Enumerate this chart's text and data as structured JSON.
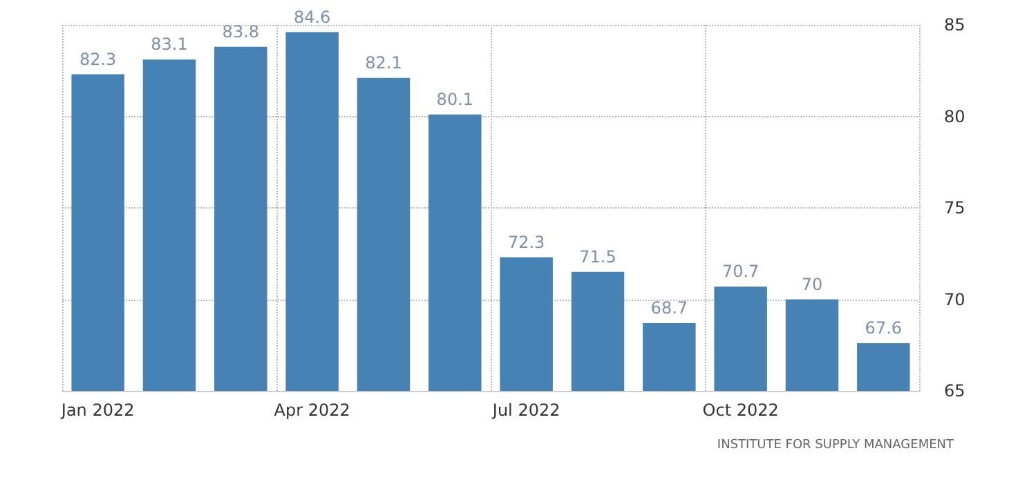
{
  "chart_data": {
    "type": "bar",
    "categories": [
      "Jan 2022",
      null,
      null,
      "Apr 2022",
      null,
      null,
      "Jul 2022",
      null,
      null,
      "Oct 2022",
      null,
      null
    ],
    "values": [
      82.3,
      83.1,
      83.8,
      84.6,
      82.1,
      80.1,
      72.3,
      71.5,
      68.7,
      70.7,
      70,
      67.6
    ],
    "color": "#4682b4",
    "ylim": [
      65,
      85
    ],
    "yticks": [
      65,
      70,
      75,
      80,
      85
    ],
    "grid": true,
    "data_labels": true,
    "annotations": [
      "INSTITUTE FOR SUPPLY MANAGEMENT"
    ]
  }
}
